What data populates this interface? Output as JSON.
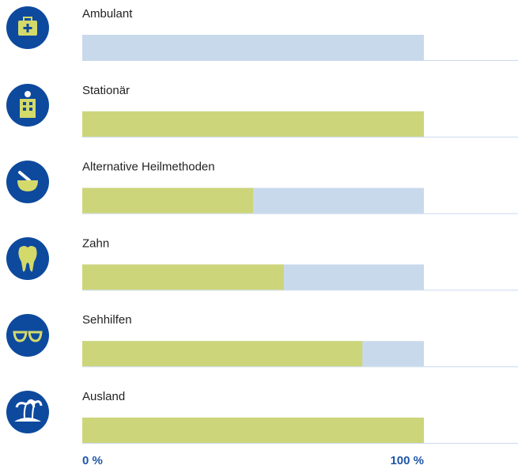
{
  "chart_data": {
    "type": "bar",
    "categories": [
      "Ambulant",
      "Stationär",
      "Alternative Heilmethoden",
      "Zahn",
      "Sehhilfen",
      "Ausland"
    ],
    "values": [
      0,
      100,
      50,
      59,
      82,
      100
    ],
    "color": "#cdd57a",
    "track_color": "#c9d9ec",
    "xlim": [
      0,
      100
    ],
    "xticks": [
      {
        "value": 0,
        "label": "0 %"
      },
      {
        "value": 100,
        "label": "100 %"
      }
    ]
  }
}
